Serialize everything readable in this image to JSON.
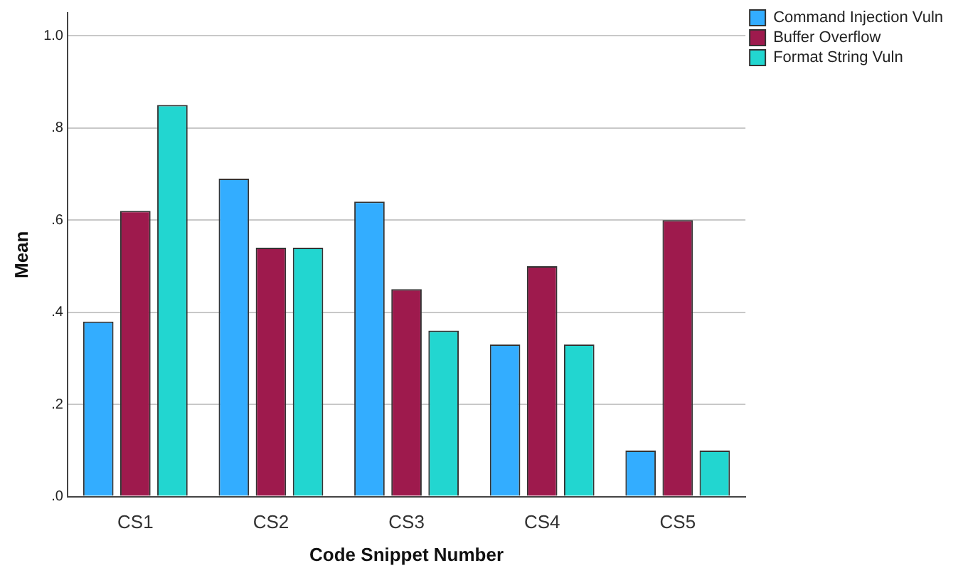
{
  "chart_data": {
    "type": "bar",
    "xlabel": "Code Snippet Number",
    "ylabel": "Mean",
    "categories": [
      "CS1",
      "CS2",
      "CS3",
      "CS4",
      "CS5"
    ],
    "series": [
      {
        "name": "Command Injection Vuln",
        "color": "#33adff",
        "values": [
          0.38,
          0.69,
          0.64,
          0.33,
          0.1
        ]
      },
      {
        "name": "Buffer Overflow",
        "color": "#9e1a4d",
        "values": [
          0.62,
          0.54,
          0.45,
          0.5,
          0.6
        ]
      },
      {
        "name": "Format String Vuln",
        "color": "#22d6d0",
        "values": [
          0.85,
          0.54,
          0.36,
          0.33,
          0.1
        ]
      }
    ],
    "ylim": [
      0,
      1.05
    ],
    "yticks": [
      {
        "value": 0,
        "label": ".0"
      },
      {
        "value": 0.2,
        "label": ".2"
      },
      {
        "value": 0.4,
        "label": ".4"
      },
      {
        "value": 0.6,
        "label": ".6"
      },
      {
        "value": 0.8,
        "label": ".8"
      },
      {
        "value": 1,
        "label": "1.0"
      }
    ],
    "grid": "y",
    "legend": "top right"
  }
}
